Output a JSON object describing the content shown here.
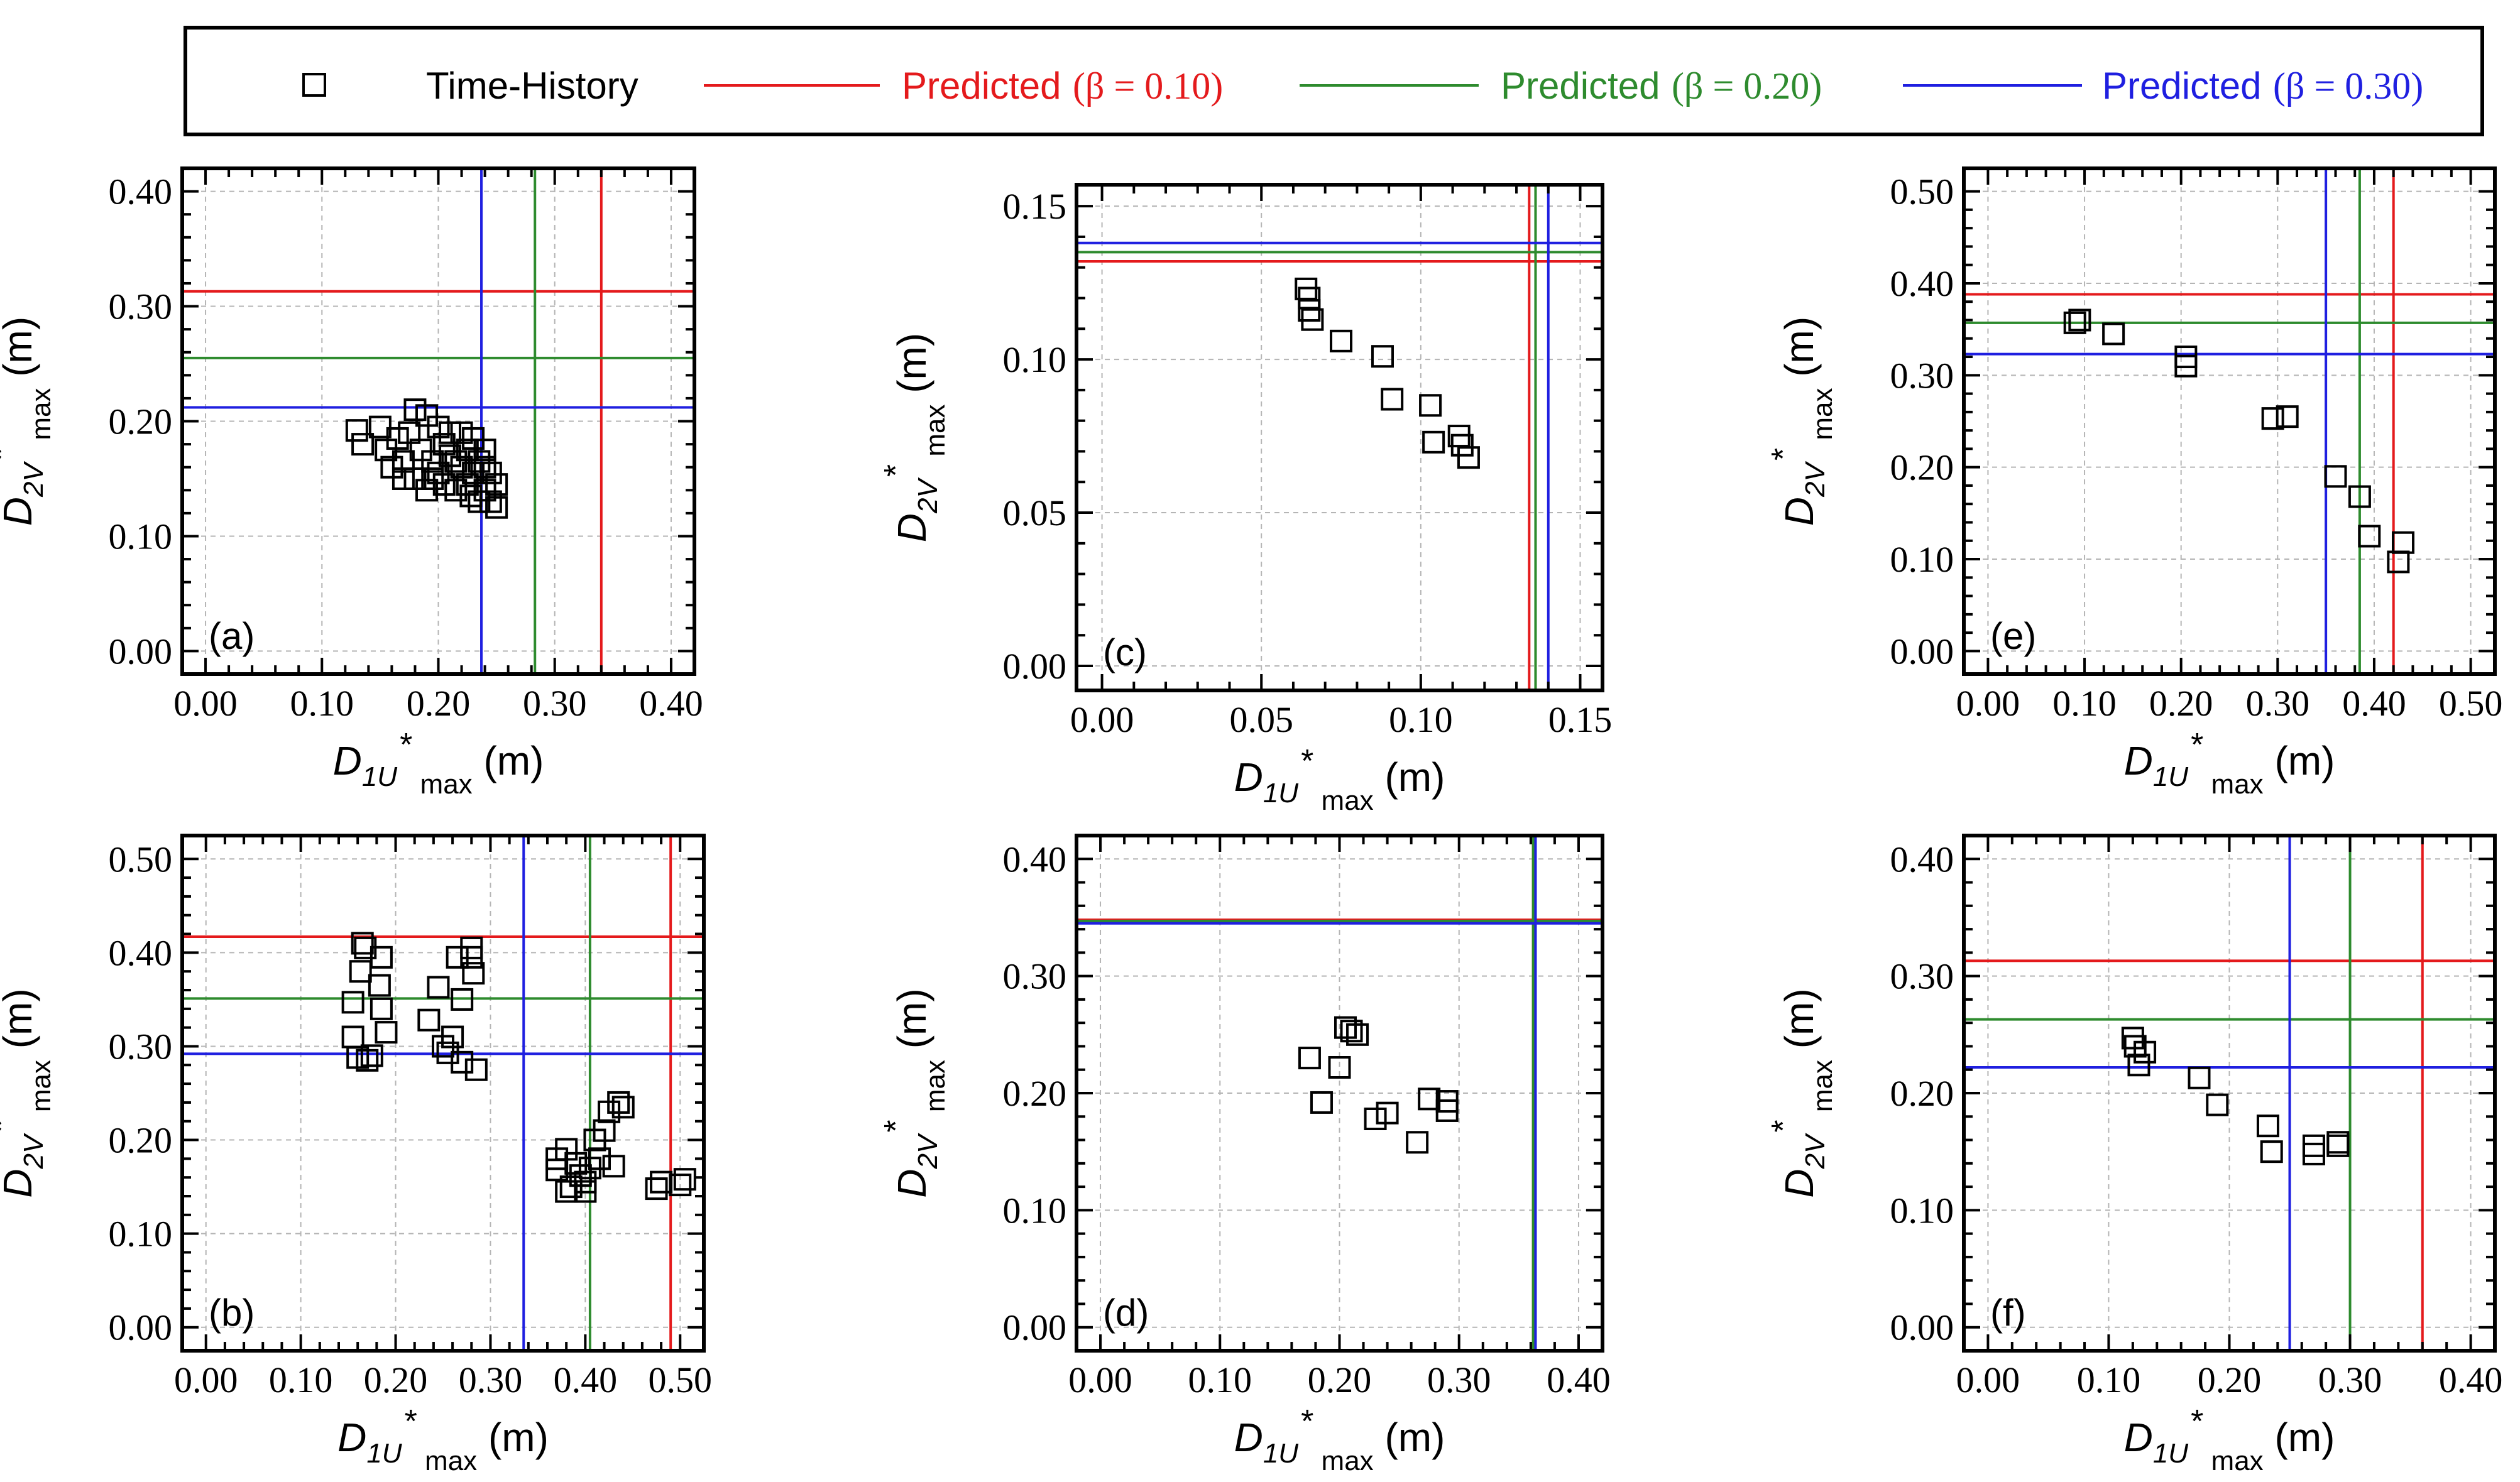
{
  "legend": {
    "time_history_label": "Time-History",
    "predicted_label": "Predicted",
    "beta_symbol": "β",
    "entries": [
      {
        "beta_text": "(β = 0.10)",
        "color": "#e41a1c"
      },
      {
        "beta_text": "(β = 0.20)",
        "color": "#2e8b2e"
      },
      {
        "beta_text": "(β = 0.30)",
        "color": "#1f1fe0"
      }
    ]
  },
  "axis_text": {
    "x_main": "D",
    "x_sub": "1U",
    "x_sup": "*",
    "x_sub2": "max",
    "x_unit": "(m)",
    "y_main": "D",
    "y_sub": "2V",
    "y_sup": "*",
    "y_sub2": "max",
    "y_unit": "(m)"
  },
  "chart_data": [
    {
      "type": "scatter",
      "panel_label": "(a)",
      "xlim": [
        -0.02,
        0.42
      ],
      "ylim": [
        -0.02,
        0.42
      ],
      "xticks": [
        "0.00",
        "0.10",
        "0.20",
        "0.30",
        "0.40"
      ],
      "xtick_vals": [
        0,
        0.1,
        0.2,
        0.3,
        0.4
      ],
      "yticks": [
        "0.00",
        "0.10",
        "0.20",
        "0.30",
        "0.40"
      ],
      "ytick_vals": [
        0,
        0.1,
        0.2,
        0.3,
        0.4
      ],
      "predicted": [
        {
          "beta": 0.1,
          "x": 0.34,
          "y": 0.313
        },
        {
          "beta": 0.2,
          "x": 0.283,
          "y": 0.255
        },
        {
          "beta": 0.3,
          "x": 0.237,
          "y": 0.212
        }
      ],
      "points": [
        [
          0.13,
          0.192
        ],
        [
          0.135,
          0.18
        ],
        [
          0.15,
          0.195
        ],
        [
          0.155,
          0.175
        ],
        [
          0.16,
          0.16
        ],
        [
          0.165,
          0.185
        ],
        [
          0.17,
          0.15
        ],
        [
          0.175,
          0.19
        ],
        [
          0.18,
          0.21
        ],
        [
          0.18,
          0.15
        ],
        [
          0.185,
          0.175
        ],
        [
          0.19,
          0.205
        ],
        [
          0.19,
          0.14
        ],
        [
          0.195,
          0.165
        ],
        [
          0.2,
          0.195
        ],
        [
          0.2,
          0.155
        ],
        [
          0.205,
          0.18
        ],
        [
          0.21,
          0.17
        ],
        [
          0.21,
          0.19
        ],
        [
          0.215,
          0.14
        ],
        [
          0.22,
          0.16
        ],
        [
          0.22,
          0.19
        ],
        [
          0.225,
          0.175
        ],
        [
          0.225,
          0.145
        ],
        [
          0.23,
          0.185
        ],
        [
          0.23,
          0.155
        ],
        [
          0.235,
          0.13
        ],
        [
          0.235,
          0.165
        ],
        [
          0.24,
          0.175
        ],
        [
          0.24,
          0.14
        ],
        [
          0.245,
          0.155
        ],
        [
          0.245,
          0.13
        ],
        [
          0.25,
          0.145
        ],
        [
          0.25,
          0.125
        ],
        [
          0.24,
          0.16
        ],
        [
          0.215,
          0.165
        ],
        [
          0.195,
          0.15
        ],
        [
          0.17,
          0.165
        ],
        [
          0.205,
          0.145
        ],
        [
          0.228,
          0.135
        ]
      ]
    },
    {
      "type": "scatter",
      "panel_label": "(c)",
      "xlim": [
        -0.008,
        0.157
      ],
      "ylim": [
        -0.008,
        0.157
      ],
      "xticks": [
        "0.00",
        "0.05",
        "0.10",
        "0.15"
      ],
      "xtick_vals": [
        0,
        0.05,
        0.1,
        0.15
      ],
      "yticks": [
        "0.00",
        "0.05",
        "0.10",
        "0.15"
      ],
      "ytick_vals": [
        0,
        0.05,
        0.1,
        0.15
      ],
      "predicted": [
        {
          "beta": 0.1,
          "x": 0.134,
          "y": 0.132
        },
        {
          "beta": 0.2,
          "x": 0.136,
          "y": 0.135
        },
        {
          "beta": 0.3,
          "x": 0.14,
          "y": 0.138
        }
      ],
      "points": [
        [
          0.064,
          0.123
        ],
        [
          0.065,
          0.12
        ],
        [
          0.065,
          0.116
        ],
        [
          0.066,
          0.113
        ],
        [
          0.075,
          0.106
        ],
        [
          0.088,
          0.101
        ],
        [
          0.091,
          0.087
        ],
        [
          0.103,
          0.085
        ],
        [
          0.104,
          0.073
        ],
        [
          0.112,
          0.075
        ],
        [
          0.113,
          0.072
        ],
        [
          0.115,
          0.068
        ]
      ]
    },
    {
      "type": "scatter",
      "panel_label": "(e)",
      "xlim": [
        -0.025,
        0.525
      ],
      "ylim": [
        -0.025,
        0.525
      ],
      "xticks": [
        "0.00",
        "0.10",
        "0.20",
        "0.30",
        "0.40",
        "0.50"
      ],
      "xtick_vals": [
        0,
        0.1,
        0.2,
        0.3,
        0.4,
        0.5
      ],
      "yticks": [
        "0.00",
        "0.10",
        "0.20",
        "0.30",
        "0.40",
        "0.50"
      ],
      "ytick_vals": [
        0,
        0.1,
        0.2,
        0.3,
        0.4,
        0.5
      ],
      "predicted": [
        {
          "beta": 0.1,
          "x": 0.42,
          "y": 0.388
        },
        {
          "beta": 0.2,
          "x": 0.385,
          "y": 0.357
        },
        {
          "beta": 0.3,
          "x": 0.35,
          "y": 0.323
        }
      ],
      "points": [
        [
          0.09,
          0.357
        ],
        [
          0.095,
          0.36
        ],
        [
          0.13,
          0.345
        ],
        [
          0.205,
          0.32
        ],
        [
          0.205,
          0.31
        ],
        [
          0.295,
          0.253
        ],
        [
          0.31,
          0.255
        ],
        [
          0.36,
          0.19
        ],
        [
          0.385,
          0.168
        ],
        [
          0.395,
          0.125
        ],
        [
          0.425,
          0.097
        ],
        [
          0.43,
          0.118
        ]
      ]
    },
    {
      "type": "scatter",
      "panel_label": "(b)",
      "xlim": [
        -0.025,
        0.525
      ],
      "ylim": [
        -0.025,
        0.525
      ],
      "xticks": [
        "0.00",
        "0.10",
        "0.20",
        "0.30",
        "0.40",
        "0.50"
      ],
      "xtick_vals": [
        0,
        0.1,
        0.2,
        0.3,
        0.4,
        0.5
      ],
      "yticks": [
        "0.00",
        "0.10",
        "0.20",
        "0.30",
        "0.40",
        "0.50"
      ],
      "ytick_vals": [
        0,
        0.1,
        0.2,
        0.3,
        0.4,
        0.5
      ],
      "predicted": [
        {
          "beta": 0.1,
          "x": 0.49,
          "y": 0.417
        },
        {
          "beta": 0.2,
          "x": 0.405,
          "y": 0.351
        },
        {
          "beta": 0.3,
          "x": 0.335,
          "y": 0.292
        }
      ],
      "points": [
        [
          0.155,
          0.31
        ],
        [
          0.155,
          0.347
        ],
        [
          0.16,
          0.288
        ],
        [
          0.163,
          0.38
        ],
        [
          0.165,
          0.41
        ],
        [
          0.168,
          0.405
        ],
        [
          0.17,
          0.285
        ],
        [
          0.175,
          0.29
        ],
        [
          0.183,
          0.365
        ],
        [
          0.185,
          0.395
        ],
        [
          0.185,
          0.34
        ],
        [
          0.19,
          0.315
        ],
        [
          0.235,
          0.328
        ],
        [
          0.245,
          0.363
        ],
        [
          0.25,
          0.3
        ],
        [
          0.255,
          0.293
        ],
        [
          0.26,
          0.31
        ],
        [
          0.265,
          0.395
        ],
        [
          0.27,
          0.35
        ],
        [
          0.27,
          0.283
        ],
        [
          0.28,
          0.405
        ],
        [
          0.28,
          0.395
        ],
        [
          0.282,
          0.378
        ],
        [
          0.285,
          0.275
        ],
        [
          0.37,
          0.18
        ],
        [
          0.37,
          0.168
        ],
        [
          0.38,
          0.19
        ],
        [
          0.38,
          0.145
        ],
        [
          0.385,
          0.15
        ],
        [
          0.39,
          0.175
        ],
        [
          0.395,
          0.162
        ],
        [
          0.4,
          0.155
        ],
        [
          0.4,
          0.145
        ],
        [
          0.405,
          0.17
        ],
        [
          0.41,
          0.2
        ],
        [
          0.415,
          0.18
        ],
        [
          0.42,
          0.21
        ],
        [
          0.425,
          0.23
        ],
        [
          0.43,
          0.172
        ],
        [
          0.435,
          0.24
        ],
        [
          0.44,
          0.235
        ],
        [
          0.475,
          0.148
        ],
        [
          0.48,
          0.155
        ],
        [
          0.5,
          0.152
        ],
        [
          0.505,
          0.158
        ]
      ]
    },
    {
      "type": "scatter",
      "panel_label": "(d)",
      "xlim": [
        -0.02,
        0.42
      ],
      "ylim": [
        -0.02,
        0.42
      ],
      "xticks": [
        "0.00",
        "0.10",
        "0.20",
        "0.30",
        "0.40"
      ],
      "xtick_vals": [
        0,
        0.1,
        0.2,
        0.3,
        0.4
      ],
      "yticks": [
        "0.00",
        "0.10",
        "0.20",
        "0.30",
        "0.40"
      ],
      "ytick_vals": [
        0,
        0.1,
        0.2,
        0.3,
        0.4
      ],
      "predicted": [
        {
          "beta": 0.1,
          "x": 0.362,
          "y": 0.348
        },
        {
          "beta": 0.2,
          "x": 0.362,
          "y": 0.347
        },
        {
          "beta": 0.3,
          "x": 0.364,
          "y": 0.345
        }
      ],
      "points": [
        [
          0.175,
          0.23
        ],
        [
          0.185,
          0.192
        ],
        [
          0.2,
          0.222
        ],
        [
          0.205,
          0.256
        ],
        [
          0.21,
          0.253
        ],
        [
          0.215,
          0.25
        ],
        [
          0.23,
          0.178
        ],
        [
          0.24,
          0.183
        ],
        [
          0.265,
          0.158
        ],
        [
          0.275,
          0.195
        ],
        [
          0.29,
          0.193
        ],
        [
          0.29,
          0.185
        ]
      ]
    },
    {
      "type": "scatter",
      "panel_label": "(f)",
      "xlim": [
        -0.02,
        0.42
      ],
      "ylim": [
        -0.02,
        0.42
      ],
      "xticks": [
        "0.00",
        "0.10",
        "0.20",
        "0.30",
        "0.40"
      ],
      "xtick_vals": [
        0,
        0.1,
        0.2,
        0.3,
        0.4
      ],
      "yticks": [
        "0.00",
        "0.10",
        "0.20",
        "0.30",
        "0.40"
      ],
      "ytick_vals": [
        0,
        0.1,
        0.2,
        0.3,
        0.4
      ],
      "predicted": [
        {
          "beta": 0.1,
          "x": 0.36,
          "y": 0.313
        },
        {
          "beta": 0.2,
          "x": 0.3,
          "y": 0.263
        },
        {
          "beta": 0.3,
          "x": 0.25,
          "y": 0.222
        }
      ],
      "points": [
        [
          0.12,
          0.247
        ],
        [
          0.122,
          0.24
        ],
        [
          0.125,
          0.224
        ],
        [
          0.13,
          0.235
        ],
        [
          0.175,
          0.213
        ],
        [
          0.19,
          0.19
        ],
        [
          0.232,
          0.172
        ],
        [
          0.235,
          0.15
        ],
        [
          0.27,
          0.148
        ],
        [
          0.27,
          0.155
        ],
        [
          0.29,
          0.158
        ],
        [
          0.29,
          0.155
        ]
      ]
    }
  ]
}
